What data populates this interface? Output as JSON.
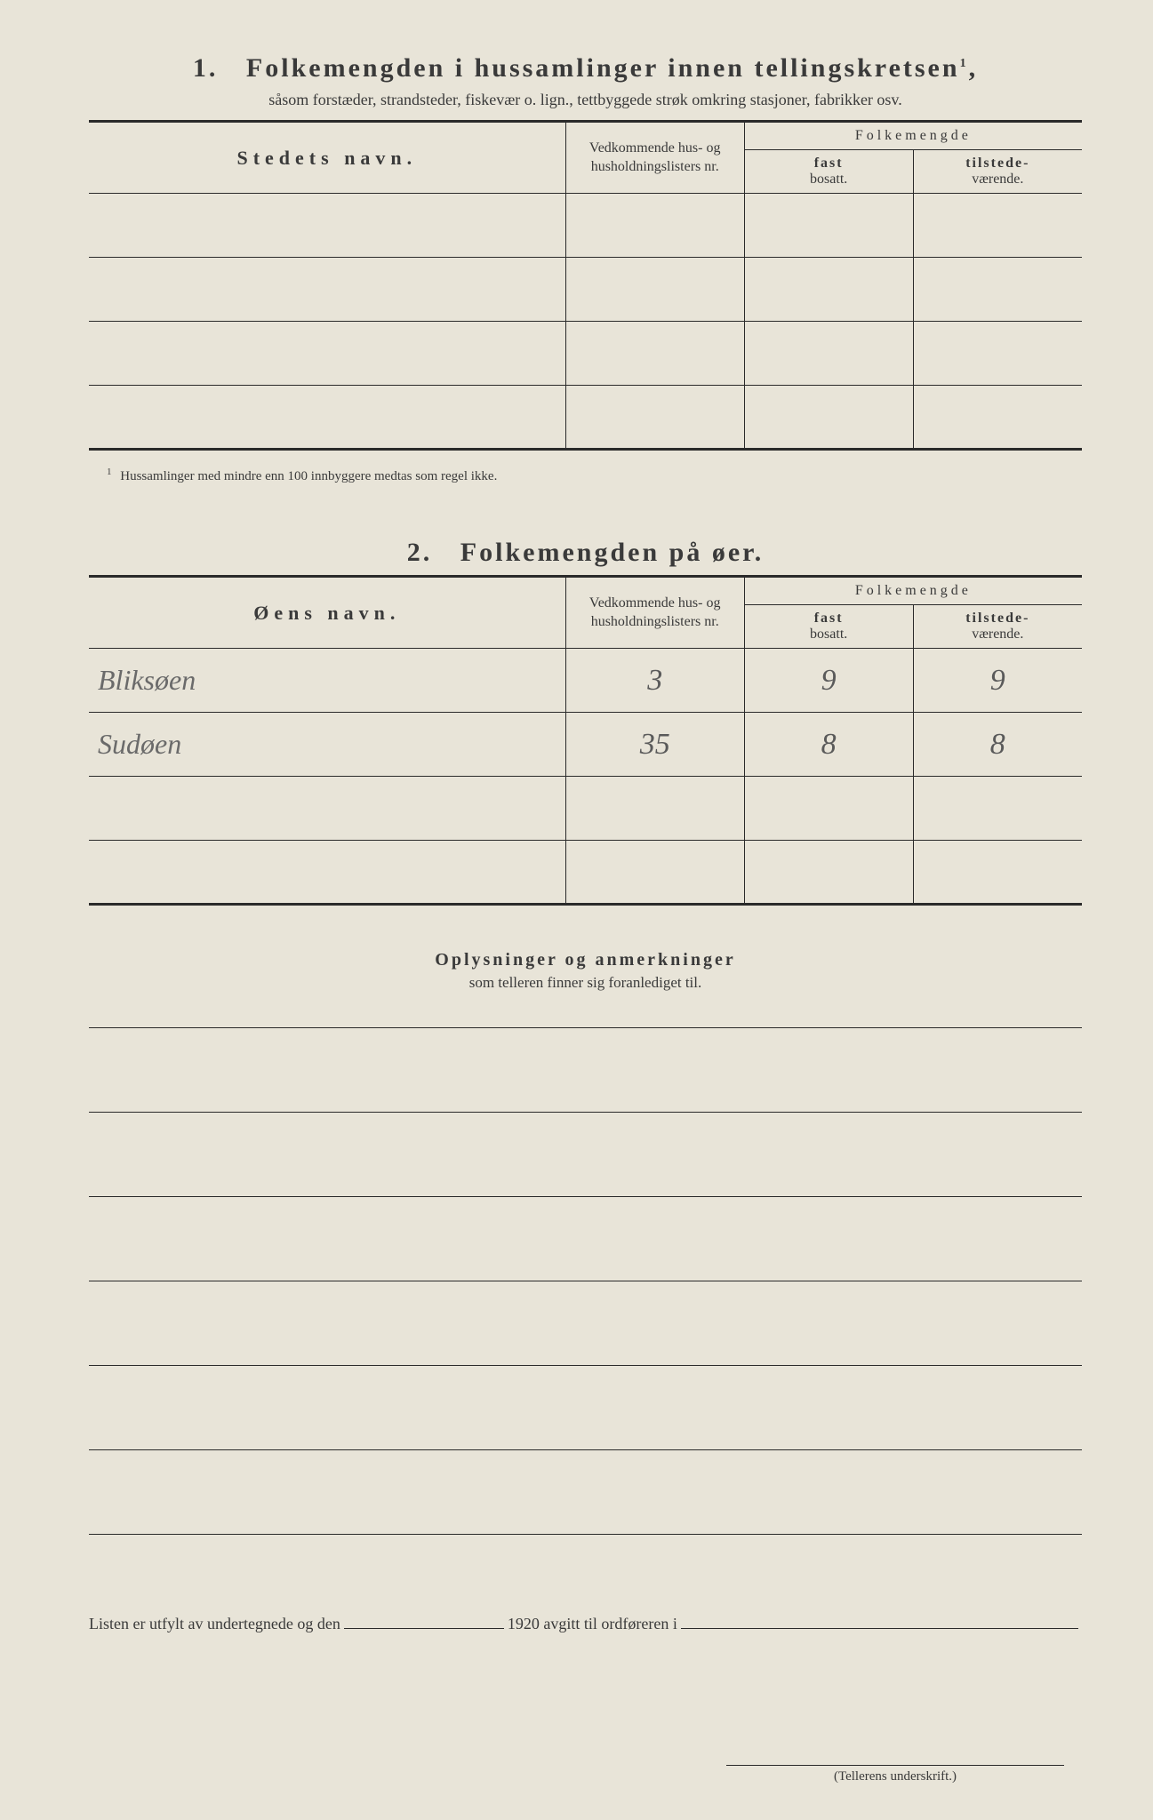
{
  "section1": {
    "number": "1.",
    "title": "Folkemengden i hussamlinger innen tellingskretsen",
    "title_sup": "1",
    "subtitle": "såsom forstæder, strandsteder, fiskevær o. lign., tettbyggede strøk omkring stasjoner, fabrikker osv.",
    "headers": {
      "name": "Stedets navn.",
      "ref": "Vedkommende hus- og husholdningslisters nr.",
      "pop": "Folkemengde",
      "fast_bold": "fast",
      "fast_sub": "bosatt.",
      "tilstede_bold": "tilstede-",
      "tilstede_sub": "værende."
    },
    "rows": [
      {
        "name": "",
        "ref": "",
        "fast": "",
        "tilstede": ""
      },
      {
        "name": "",
        "ref": "",
        "fast": "",
        "tilstede": ""
      },
      {
        "name": "",
        "ref": "",
        "fast": "",
        "tilstede": ""
      },
      {
        "name": "",
        "ref": "",
        "fast": "",
        "tilstede": ""
      }
    ],
    "footnote_mark": "1",
    "footnote": "Hussamlinger med mindre enn 100 innbyggere medtas som regel ikke."
  },
  "section2": {
    "number": "2.",
    "title": "Folkemengden på øer.",
    "headers": {
      "name": "Øens navn.",
      "ref": "Vedkommende hus- og husholdningslisters nr.",
      "pop": "Folkemengde",
      "fast_bold": "fast",
      "fast_sub": "bosatt.",
      "tilstede_bold": "tilstede-",
      "tilstede_sub": "værende."
    },
    "rows": [
      {
        "name": "Bliksøen",
        "ref": "3",
        "fast": "9",
        "tilstede": "9"
      },
      {
        "name": "Sudøen",
        "ref": "35",
        "fast": "8",
        "tilstede": "8"
      },
      {
        "name": "",
        "ref": "",
        "fast": "",
        "tilstede": ""
      },
      {
        "name": "",
        "ref": "",
        "fast": "",
        "tilstede": ""
      }
    ]
  },
  "notes": {
    "title": "Oplysninger og anmerkninger",
    "subtitle": "som telleren finner sig foranlediget til.",
    "line_count": 6
  },
  "footer": {
    "prefix": "Listen er utfylt av undertegnede og den",
    "year": "1920",
    "suffix": "avgitt til ordføreren i"
  },
  "signature": {
    "label": "(Tellerens underskrift.)"
  }
}
